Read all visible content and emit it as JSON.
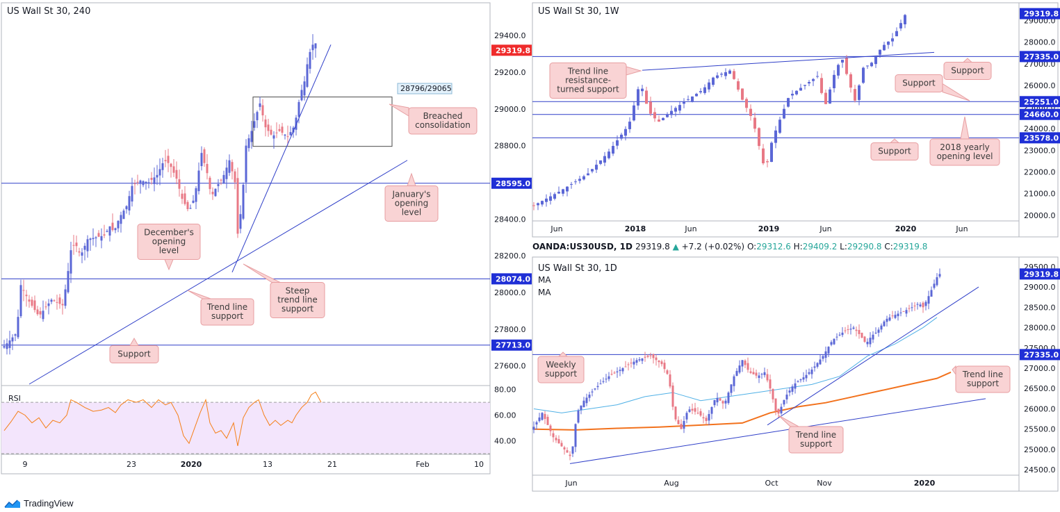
{
  "brand": "TradingView",
  "chart_data": [
    {
      "id": "h4",
      "type": "candlestick",
      "title": "US Wall St 30, 240",
      "last_price_label": "29319.8",
      "ylim": [
        27500,
        29480
      ],
      "y_ticks": [
        27600,
        27800,
        28000,
        28200,
        28400,
        28600,
        28800,
        29000,
        29200,
        29400
      ],
      "y_tick_labels": [
        "27600.0",
        "27800.0",
        "28000.0",
        "28200.0",
        "28400.0",
        "28600.0",
        "28800.0",
        "29000.0",
        "29200.0",
        "29400.0"
      ],
      "x_tick_labels": [
        "9",
        "23",
        "2020",
        "13",
        "21",
        "Feb",
        "10"
      ],
      "close_path": [
        [
          0,
          27700
        ],
        [
          8,
          27730
        ],
        [
          20,
          27780
        ],
        [
          26,
          28040
        ],
        [
          38,
          27950
        ],
        [
          52,
          27870
        ],
        [
          58,
          27900
        ],
        [
          70,
          27960
        ],
        [
          86,
          27930
        ],
        [
          92,
          28060
        ],
        [
          98,
          28230
        ],
        [
          104,
          28270
        ],
        [
          112,
          28200
        ],
        [
          122,
          28290
        ],
        [
          134,
          28300
        ],
        [
          146,
          28310
        ],
        [
          154,
          28360
        ],
        [
          160,
          28330
        ],
        [
          168,
          28410
        ],
        [
          178,
          28470
        ],
        [
          186,
          28580
        ],
        [
          198,
          28610
        ],
        [
          210,
          28600
        ],
        [
          222,
          28640
        ],
        [
          232,
          28720
        ],
        [
          240,
          28700
        ],
        [
          250,
          28620
        ],
        [
          258,
          28510
        ],
        [
          268,
          28440
        ],
        [
          276,
          28520
        ],
        [
          286,
          28760
        ],
        [
          294,
          28650
        ],
        [
          300,
          28520
        ],
        [
          308,
          28580
        ],
        [
          316,
          28620
        ],
        [
          326,
          28720
        ],
        [
          334,
          28600
        ],
        [
          338,
          28320
        ],
        [
          344,
          28480
        ],
        [
          350,
          28800
        ],
        [
          358,
          28880
        ],
        [
          364,
          28960
        ],
        [
          370,
          29030
        ],
        [
          378,
          28900
        ],
        [
          388,
          28850
        ],
        [
          398,
          28880
        ],
        [
          410,
          28850
        ],
        [
          420,
          28910
        ],
        [
          428,
          29080
        ],
        [
          434,
          29150
        ],
        [
          440,
          29290
        ],
        [
          448,
          29370
        ],
        [
          456,
          29319.8
        ]
      ],
      "lines": [
        {
          "name": "January's opening level",
          "value": 28595.0,
          "label": "28595.0",
          "color": "#2e3ec8"
        },
        {
          "name": "December's opening level",
          "value": 28074.0,
          "label": "28074.0",
          "color": "#2e3ec8"
        },
        {
          "name": "Support",
          "value": 27713.0,
          "label": "27713.0",
          "color": "#2e3ec8"
        }
      ],
      "zone": {
        "low": 28796,
        "high": 29065,
        "label": "28796/29065"
      },
      "trendlines": [
        {
          "from": [
            334,
            28110
          ],
          "to": [
            476,
            29350
          ]
        },
        {
          "from": [
            42,
            27500
          ],
          "to": [
            586,
            28720
          ]
        }
      ],
      "annotations": [
        {
          "id": "breached",
          "text": [
            "Breached",
            "consolidation"
          ]
        },
        {
          "id": "january",
          "text": [
            "January's",
            "opening",
            "level"
          ]
        },
        {
          "id": "december",
          "text": [
            "December's",
            "opening",
            "level"
          ]
        },
        {
          "id": "steep",
          "text": [
            "Steep",
            "trend line",
            "support"
          ]
        },
        {
          "id": "trend",
          "text": [
            "Trend line",
            "support"
          ]
        },
        {
          "id": "support",
          "text": [
            "Support"
          ]
        }
      ],
      "rsi": {
        "label": "RSI",
        "ylim": [
          30,
          82
        ],
        "y_ticks": [
          40,
          60,
          80
        ],
        "y_tick_labels": [
          "40.00",
          "60.00",
          "80.00"
        ],
        "levels": [
          70,
          30
        ],
        "color": "#f57f17",
        "values": [
          [
            0,
            48
          ],
          [
            10,
            55
          ],
          [
            20,
            63
          ],
          [
            30,
            60
          ],
          [
            40,
            54
          ],
          [
            50,
            58
          ],
          [
            60,
            50
          ],
          [
            70,
            56
          ],
          [
            80,
            54
          ],
          [
            90,
            60
          ],
          [
            96,
            72
          ],
          [
            104,
            70
          ],
          [
            116,
            66
          ],
          [
            128,
            63
          ],
          [
            140,
            64
          ],
          [
            150,
            66
          ],
          [
            160,
            62
          ],
          [
            168,
            68
          ],
          [
            178,
            72
          ],
          [
            190,
            70
          ],
          [
            200,
            72
          ],
          [
            212,
            66
          ],
          [
            222,
            72
          ],
          [
            232,
            68
          ],
          [
            240,
            70
          ],
          [
            250,
            60
          ],
          [
            258,
            44
          ],
          [
            266,
            38
          ],
          [
            274,
            50
          ],
          [
            282,
            62
          ],
          [
            290,
            72
          ],
          [
            296,
            54
          ],
          [
            304,
            46
          ],
          [
            312,
            48
          ],
          [
            320,
            42
          ],
          [
            330,
            54
          ],
          [
            336,
            36
          ],
          [
            344,
            58
          ],
          [
            352,
            66
          ],
          [
            360,
            70
          ],
          [
            366,
            72
          ],
          [
            374,
            60
          ],
          [
            382,
            52
          ],
          [
            390,
            56
          ],
          [
            398,
            52
          ],
          [
            408,
            56
          ],
          [
            414,
            54
          ],
          [
            420,
            60
          ],
          [
            428,
            66
          ],
          [
            436,
            70
          ],
          [
            442,
            76
          ],
          [
            448,
            78
          ],
          [
            456,
            70
          ]
        ]
      }
    },
    {
      "id": "weekly",
      "type": "candlestick",
      "title": "US Wall St 30, 1W",
      "last_price_label": "29319.8",
      "ylim": [
        19800,
        29500
      ],
      "y_ticks": [
        20000,
        21000,
        22000,
        23000,
        24000,
        25000,
        26000,
        27000,
        28000,
        29000
      ],
      "y_tick_labels": [
        "20000.0",
        "21000.0",
        "22000.0",
        "23000.0",
        "24000.0",
        "25000.0",
        "26000.0",
        "27000.0",
        "28000.0",
        "29000.0"
      ],
      "x_tick_labels": [
        "Jun",
        "2018",
        "Jun",
        "2019",
        "Jun",
        "2020",
        "Jun"
      ],
      "close_path": [
        [
          0,
          20400
        ],
        [
          40,
          21100
        ],
        [
          80,
          21900
        ],
        [
          110,
          22900
        ],
        [
          140,
          24200
        ],
        [
          156,
          26200
        ],
        [
          168,
          24800
        ],
        [
          182,
          24300
        ],
        [
          200,
          24800
        ],
        [
          222,
          25300
        ],
        [
          246,
          25800
        ],
        [
          262,
          26400
        ],
        [
          286,
          26700
        ],
        [
          302,
          25400
        ],
        [
          318,
          24400
        ],
        [
          336,
          22000
        ],
        [
          346,
          23500
        ],
        [
          370,
          25500
        ],
        [
          392,
          26000
        ],
        [
          414,
          26500
        ],
        [
          420,
          24800
        ],
        [
          436,
          26600
        ],
        [
          446,
          27300
        ],
        [
          456,
          26200
        ],
        [
          466,
          25200
        ],
        [
          476,
          26800
        ],
        [
          488,
          27000
        ],
        [
          504,
          27800
        ],
        [
          520,
          28200
        ],
        [
          538,
          29319.8
        ]
      ],
      "lines": [
        {
          "name": "Support",
          "value": 27335.0,
          "label": "27335.0",
          "color": "#2e3ec8"
        },
        {
          "name": "Support",
          "value": 25251.0,
          "label": "25251.0",
          "color": "#2e3ec8"
        },
        {
          "name": "2018 yearly opening level",
          "value": 24660.0,
          "label": "24660.0",
          "color": "#2e3ec8"
        },
        {
          "name": "Support",
          "value": 23578.0,
          "label": "23578.0",
          "color": "#2e3ec8"
        }
      ],
      "trendlines": [
        {
          "from": [
            158,
            26700
          ],
          "to": [
            578,
            27530
          ]
        }
      ],
      "annotations": [
        {
          "id": "trend-res",
          "text": [
            "Trend line",
            "resistance-",
            "turned support"
          ]
        },
        {
          "id": "support-a",
          "text": [
            "Support"
          ]
        },
        {
          "id": "support-b",
          "text": [
            "Support"
          ]
        },
        {
          "id": "support-c",
          "text": [
            "Support"
          ]
        },
        {
          "id": "yearly",
          "text": [
            "2018 yearly",
            "opening level"
          ]
        }
      ]
    },
    {
      "id": "daily",
      "type": "candlestick",
      "title": "US Wall St 30, 1D",
      "last_price_label": "29319.8",
      "ylim": [
        24400,
        29600
      ],
      "y_ticks": [
        24500,
        25000,
        25500,
        26000,
        26500,
        27000,
        27500,
        28000,
        28500,
        29000,
        29500
      ],
      "y_tick_labels": [
        "24500.0",
        "25000.0",
        "25500.0",
        "26000.0",
        "26500.0",
        "27000.0",
        "27500.0",
        "28000.0",
        "28500.0",
        "29000.0",
        "29500.0"
      ],
      "x_tick_labels": [
        "Jun",
        "Aug",
        "Oct",
        "Nov",
        "2020"
      ],
      "ma_labels": [
        "MA",
        "MA"
      ],
      "close_path": [
        [
          0,
          25500
        ],
        [
          14,
          25900
        ],
        [
          30,
          25300
        ],
        [
          46,
          25000
        ],
        [
          56,
          24800
        ],
        [
          64,
          25900
        ],
        [
          74,
          26200
        ],
        [
          90,
          26500
        ],
        [
          110,
          26800
        ],
        [
          130,
          27000
        ],
        [
          150,
          27200
        ],
        [
          170,
          27300
        ],
        [
          186,
          27100
        ],
        [
          196,
          26800
        ],
        [
          204,
          25800
        ],
        [
          214,
          25500
        ],
        [
          224,
          26000
        ],
        [
          238,
          25900
        ],
        [
          250,
          25700
        ],
        [
          264,
          26300
        ],
        [
          276,
          26100
        ],
        [
          290,
          26800
        ],
        [
          302,
          27200
        ],
        [
          312,
          26900
        ],
        [
          324,
          26800
        ],
        [
          334,
          26900
        ],
        [
          342,
          26500
        ],
        [
          348,
          26100
        ],
        [
          352,
          25800
        ],
        [
          364,
          26300
        ],
        [
          376,
          26600
        ],
        [
          392,
          26800
        ],
        [
          404,
          27000
        ],
        [
          418,
          27300
        ],
        [
          432,
          27700
        ],
        [
          448,
          27900
        ],
        [
          462,
          28000
        ],
        [
          472,
          27800
        ],
        [
          480,
          27600
        ],
        [
          488,
          27800
        ],
        [
          496,
          27900
        ],
        [
          508,
          28200
        ],
        [
          520,
          28300
        ],
        [
          534,
          28400
        ],
        [
          546,
          28500
        ],
        [
          556,
          28600
        ],
        [
          562,
          28500
        ],
        [
          568,
          28700
        ],
        [
          576,
          29000
        ],
        [
          584,
          29319.8
        ]
      ],
      "ma_blue": [
        [
          0,
          26000
        ],
        [
          40,
          25900
        ],
        [
          80,
          26000
        ],
        [
          120,
          26100
        ],
        [
          160,
          26300
        ],
        [
          200,
          26400
        ],
        [
          240,
          26200
        ],
        [
          280,
          26300
        ],
        [
          320,
          26400
        ],
        [
          360,
          26500
        ],
        [
          400,
          26600
        ],
        [
          440,
          26800
        ],
        [
          480,
          27300
        ],
        [
          520,
          27600
        ],
        [
          560,
          28000
        ],
        [
          580,
          28250
        ]
      ],
      "ma_orange": [
        [
          0,
          25500
        ],
        [
          60,
          25480
        ],
        [
          120,
          25520
        ],
        [
          180,
          25550
        ],
        [
          240,
          25600
        ],
        [
          300,
          25650
        ],
        [
          340,
          25900
        ],
        [
          380,
          26050
        ],
        [
          420,
          26150
        ],
        [
          460,
          26300
        ],
        [
          500,
          26450
        ],
        [
          540,
          26600
        ],
        [
          580,
          26750
        ],
        [
          600,
          26900
        ]
      ],
      "lines": [
        {
          "name": "Weekly support",
          "value": 27335.0,
          "label": "27335.0",
          "color": "#2e3ec8"
        }
      ],
      "trendlines": [
        {
          "from": [
            338,
            25600
          ],
          "to": [
            642,
            29000
          ]
        },
        {
          "from": [
            54,
            24650
          ],
          "to": [
            652,
            26250
          ]
        }
      ],
      "annotations": [
        {
          "id": "weekly-sup",
          "text": [
            "Weekly",
            "support"
          ]
        },
        {
          "id": "trend-line-sup",
          "text": [
            "Trend line",
            "support"
          ]
        },
        {
          "id": "trend-line-sup2",
          "text": [
            "Trend line",
            "support"
          ]
        }
      ]
    }
  ],
  "ohlc_bar": {
    "symbol": "OANDA:US30USD, 1D",
    "last": "29319.8",
    "change": "+7.2 (+0.02%)",
    "o_label": "O:",
    "o": "29312.6",
    "h_label": "H:",
    "h": "29409.2",
    "l_label": "L:",
    "l": "29290.8",
    "c_label": "C:",
    "c": "29319.8"
  },
  "colors": {
    "up": "#5b67d6",
    "down": "#e87885",
    "level_line": "#2e3ec8",
    "callout_fill": "#f9d3d4",
    "callout_stroke": "#e79ea1",
    "price_tag": "#1f2fd6",
    "last_tag_red": "#ef2b2b",
    "ma_blue": "#4fb0e6",
    "ma_orange": "#f2711c",
    "ohlc_green": "#26a69a"
  }
}
